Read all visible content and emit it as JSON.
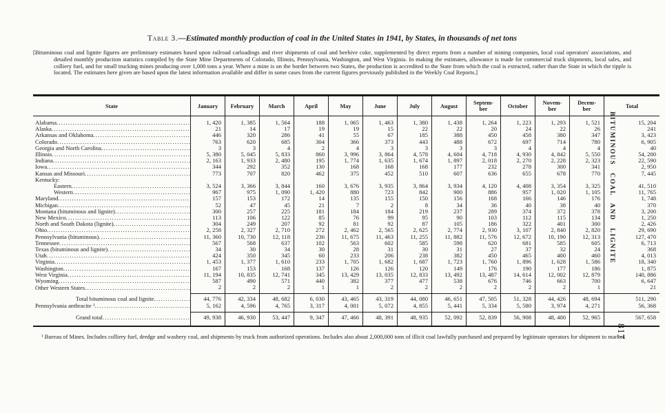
{
  "document": {
    "title_prefix": "Table 3.",
    "title_dash": "—",
    "title_text": "Estimated monthly production of coal in the United States in 1941, by States, in thousands of net tons",
    "headnote": "[Bituminous coal and lignite figures are preliminary estimates based upon railroad carloadings and river shipments of coal and beehive coke, supplemented by direct reports from a number of mining companies, local coal operators' associations, and detailed monthly production statistics compiled by the State Mine Departments of Colorado, Illinois, Pennsylvania, Washington, and West Virginia.  In making the estimates, allowance is made for commercial truck shipments, local sales, and colliery fuel, and for small trucking mines producing over 1,000 tons a year.  Where a mine is on the border between two States, the production is accredited to the State from which the coal is extracted, rather than the State in which the tipple is located.  The estimates here given are based upon the latest information available and differ in some cases from the current figures previously published in the Weekly Coal Reports.]",
    "footnote": "¹ Bureau of Mines.  Includes colliery fuel, dredge and washery coal, and shipments by truck from authorized operations.  Includes also about 2,000,000 tons of illicit coal lawfully purchased and prepared by legitimate operators for shipment to market.",
    "side_caption": "BITUMINOUS COAL AND LIGNITE",
    "page_number": "817"
  },
  "table": {
    "columns": [
      "State",
      "January",
      "February",
      "March",
      "April",
      "May",
      "June",
      "July",
      "August",
      "Septem-\nber",
      "October",
      "Novem-\nber",
      "Decem-\nber",
      "Total"
    ],
    "rows": [
      {
        "label": "Alabama",
        "kind": "plain",
        "values": [
          "1, 420",
          "1, 385",
          "1, 564",
          "188",
          "1, 065",
          "1, 463",
          "1, 380",
          "1, 438",
          "1, 264",
          "1, 223",
          "1, 293",
          "1, 521",
          "15, 204"
        ]
      },
      {
        "label": "Alaska",
        "kind": "plain",
        "values": [
          "21",
          "14",
          "17",
          "19",
          "19",
          "15",
          "22",
          "22",
          "20",
          "24",
          "22",
          "26",
          "241"
        ]
      },
      {
        "label": "Arkansas and Oklahoma",
        "kind": "plain",
        "values": [
          "446",
          "320",
          "286",
          "41",
          "55",
          "67",
          "185",
          "388",
          "450",
          "458",
          "380",
          "347",
          "3, 423"
        ]
      },
      {
        "label": "Colorado",
        "kind": "plain",
        "values": [
          "763",
          "620",
          "685",
          "304",
          "366",
          "373",
          "443",
          "488",
          "672",
          "697",
          "714",
          "780",
          "6, 905"
        ]
      },
      {
        "label": "Georgia and North Carolina",
        "kind": "plain",
        "values": [
          "3",
          "3",
          "4",
          "2",
          "4",
          "3",
          "3",
          "3",
          "3",
          "4",
          "4",
          "4",
          "40"
        ]
      },
      {
        "label": "Illinois",
        "kind": "plain",
        "values": [
          "5, 380",
          "5, 045",
          "5, 833",
          "860",
          "3, 996",
          "3, 864",
          "4, 578",
          "4, 604",
          "4, 718",
          "4, 930",
          "4, 842",
          "5, 550",
          "54, 200"
        ]
      },
      {
        "label": "Indiana",
        "kind": "plain",
        "values": [
          "2, 163",
          "1, 933",
          "2, 480",
          "195",
          "1, 774",
          "1, 635",
          "1, 674",
          "1, 897",
          "2, 018",
          "2, 270",
          "2, 228",
          "2, 323",
          "22, 590"
        ]
      },
      {
        "label": "Iowa",
        "kind": "plain",
        "values": [
          "344",
          "292",
          "352",
          "130",
          "168",
          "168",
          "168",
          "177",
          "232",
          "278",
          "300",
          "341",
          "2, 950"
        ]
      },
      {
        "label": "Kansas and Missouri",
        "kind": "plain",
        "values": [
          "773",
          "707",
          "820",
          "462",
          "375",
          "452",
          "510",
          "607",
          "636",
          "655",
          "678",
          "770",
          "7, 445"
        ]
      },
      {
        "label": "Kentucky:",
        "kind": "group",
        "values": null
      },
      {
        "label": "Eastern",
        "kind": "indent1",
        "values": [
          "3, 524",
          "3, 366",
          "3, 844",
          "160",
          "3, 676",
          "3, 935",
          "3, 864",
          "3, 934",
          "4, 120",
          "4, 408",
          "3, 354",
          "3, 325",
          "41, 510"
        ]
      },
      {
        "label": "Western",
        "kind": "indent1",
        "values": [
          "967",
          "975",
          "1, 090",
          "1, 420",
          "880",
          "723",
          "842",
          "900",
          "886",
          "957",
          "1, 020",
          "1, 105",
          "11, 765"
        ]
      },
      {
        "label": "Maryland",
        "kind": "plain",
        "values": [
          "157",
          "153",
          "172",
          "14",
          "135",
          "155",
          "150",
          "156",
          "168",
          "166",
          "146",
          "176",
          "1, 748"
        ]
      },
      {
        "label": "Michigan",
        "kind": "plain",
        "values": [
          "52",
          "47",
          "45",
          "21",
          "7",
          "2",
          "8",
          "34",
          "36",
          "40",
          "38",
          "40",
          "370"
        ]
      },
      {
        "label": "Montana (bituminous and lignite)",
        "kind": "plain",
        "values": [
          "300",
          "257",
          "225",
          "181",
          "184",
          "184",
          "219",
          "237",
          "289",
          "374",
          "372",
          "378",
          "3, 200"
        ]
      },
      {
        "label": "New Mexico",
        "kind": "plain",
        "values": [
          "113",
          "106",
          "122",
          "85",
          "76",
          "99",
          "95",
          "90",
          "103",
          "112",
          "115",
          "134",
          "1, 250"
        ]
      },
      {
        "label": "North and South Dakota (lignite)",
        "kind": "plain",
        "values": [
          "304",
          "249",
          "207",
          "92",
          "81",
          "92",
          "87",
          "105",
          "186",
          "322",
          "401",
          "300",
          "2, 426"
        ]
      },
      {
        "label": "Ohio",
        "kind": "plain",
        "values": [
          "2, 258",
          "2, 327",
          "2, 710",
          "272",
          "2, 462",
          "2, 565",
          "2, 625",
          "2, 774",
          "2, 930",
          "3, 107",
          "2, 840",
          "2, 820",
          "29, 690"
        ]
      },
      {
        "label": "Pennsylvania (bituminous)",
        "kind": "plain",
        "values": [
          "11, 360",
          "10, 730",
          "12, 118",
          "236",
          "11, 675",
          "11, 463",
          "11, 255",
          "11, 882",
          "11, 576",
          "12, 672",
          "10, 190",
          "12, 313",
          "127, 470"
        ]
      },
      {
        "label": "Tennessee",
        "kind": "plain",
        "values": [
          "567",
          "568",
          "637",
          "102",
          "563",
          "602",
          "585",
          "598",
          "620",
          "681",
          "585",
          "605",
          "6, 713"
        ]
      },
      {
        "label": "Texas (bituminous and lignite)",
        "kind": "plain",
        "values": [
          "34",
          "30",
          "34",
          "30",
          "28",
          "31",
          "30",
          "31",
          "27",
          "37",
          "32",
          "24",
          "368"
        ]
      },
      {
        "label": "Utah",
        "kind": "plain",
        "values": [
          "424",
          "350",
          "345",
          "60",
          "233",
          "206",
          "238",
          "382",
          "450",
          "465",
          "400",
          "460",
          "4, 013"
        ]
      },
      {
        "label": "Virginia",
        "kind": "plain",
        "values": [
          "1, 453",
          "1, 377",
          "1, 610",
          "233",
          "1, 705",
          "1, 682",
          "1, 687",
          "1, 723",
          "1, 760",
          "1, 896",
          "1, 628",
          "1, 586",
          "18, 340"
        ]
      },
      {
        "label": "Washington",
        "kind": "plain",
        "values": [
          "167",
          "153",
          "168",
          "137",
          "126",
          "126",
          "120",
          "149",
          "176",
          "190",
          "177",
          "186",
          "1, 875"
        ]
      },
      {
        "label": "West Virginia",
        "kind": "plain",
        "values": [
          "11, 194",
          "10, 835",
          "12, 741",
          "345",
          "13, 429",
          "13, 035",
          "12, 833",
          "13, 492",
          "13, 487",
          "14, 614",
          "12, 002",
          "12, 879",
          "140, 886"
        ]
      },
      {
        "label": "Wyoming",
        "kind": "plain",
        "values": [
          "587",
          "490",
          "571",
          "440",
          "382",
          "377",
          "477",
          "538",
          "676",
          "746",
          "663",
          "700",
          "6, 647"
        ]
      },
      {
        "label": "Other Western States",
        "kind": "last",
        "values": [
          "2",
          "2",
          "2",
          "1",
          "1",
          "2",
          "2",
          "2",
          "2",
          "2",
          "2",
          "1",
          "21"
        ]
      }
    ],
    "totals": [
      {
        "label": "Total bituminous coal and lignite",
        "kind": "total-main",
        "values": [
          "44, 776",
          "42, 334",
          "48, 682",
          "6, 030",
          "43, 465",
          "43, 319",
          "44, 080",
          "46, 651",
          "47, 505",
          "51, 328",
          "44, 426",
          "48, 694",
          "511, 290"
        ]
      },
      {
        "label": "Pennsylvania anthracite ¹",
        "kind": "anthracite",
        "values": [
          "5, 162",
          "4, 596",
          "4, 765",
          "3, 317",
          "4, 001",
          "5, 072",
          "4, 855",
          "5, 441",
          "5, 334",
          "5, 580",
          "3, 974",
          "4, 271",
          "56, 368"
        ]
      },
      {
        "label": "Grand total",
        "kind": "grand",
        "values": [
          "49, 938",
          "46, 930",
          "53, 447",
          "9, 347",
          "47, 466",
          "48, 391",
          "48, 935",
          "52, 092",
          "52, 839",
          "56, 908",
          "48, 400",
          "52, 965",
          "567, 658"
        ]
      }
    ]
  }
}
